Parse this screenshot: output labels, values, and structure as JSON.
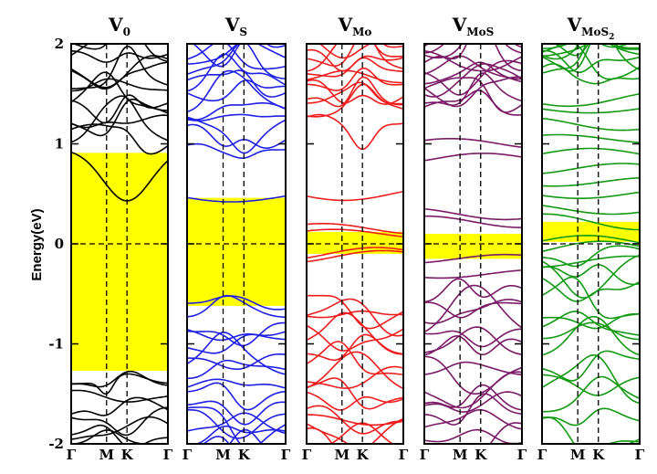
{
  "chart_data": {
    "type": "line",
    "chart_kind": "electronic band structure",
    "ylabel": "Energy(eV)",
    "ylim": [
      -2,
      2
    ],
    "yticks": [
      "2",
      "1",
      "0",
      "-1",
      "-2"
    ],
    "ytick_values": [
      2,
      1,
      0,
      -1,
      -2
    ],
    "k_path": [
      "Γ",
      "M",
      "K",
      "Γ"
    ],
    "k_positions": [
      0,
      0.577,
      0.91,
      1.577
    ],
    "fermi_level": 0,
    "grid": false,
    "legend": "none",
    "panels": [
      {
        "id": "v0",
        "title": "V",
        "title_sub": "0",
        "title_subsub": "",
        "line_color": "#000000",
        "shade_color": "#ffff00",
        "band_gap_ev": [
          -1.27,
          0.91
        ],
        "valence_band_max_ev": -1.27,
        "conduction_band_min_ev": 0.91,
        "defect_bands_ev": []
      },
      {
        "id": "vs",
        "title": "V",
        "title_sub": "S",
        "title_subsub": "",
        "line_color": "#1f1fe6",
        "shade_color": "#ffff00",
        "band_gap_ev": [
          -0.62,
          0.46
        ],
        "valence_band_max_ev": -0.62,
        "conduction_band_min_ev": 0.97,
        "defect_bands_ev": [
          0.47
        ]
      },
      {
        "id": "vmo",
        "title": "V",
        "title_sub": "Mo",
        "title_subsub": "",
        "line_color": "#ee1c1c",
        "shade_color": "#ffff00",
        "band_gap_ev": [
          -0.1,
          0.12
        ],
        "valence_band_max_ev": -0.62,
        "conduction_band_min_ev": 1.25,
        "defect_bands_ev": [
          0.5,
          0.15,
          0.1,
          -0.1,
          -0.13
        ]
      },
      {
        "id": "vmos",
        "title": "V",
        "title_sub": "MoS",
        "title_subsub": "",
        "line_color": "#7a1a66",
        "shade_color": "#ffff00",
        "band_gap_ev": [
          -0.15,
          0.1
        ],
        "valence_band_max_ev": -0.45,
        "conduction_band_min_ev": 1.35,
        "defect_bands_ev": [
          1.0,
          0.85,
          0.3,
          0.22,
          -0.15,
          -0.3
        ]
      },
      {
        "id": "vmos2",
        "title": "V",
        "title_sub": "MoS",
        "title_subsub": "2",
        "line_color": "#119911",
        "shade_color": "#ffff00",
        "band_gap_ev": [
          0.02,
          0.22
        ],
        "valence_band_max_ev": -0.05,
        "conduction_band_min_ev": 1.75,
        "defect_bands_ev": [
          1.45,
          1.35,
          1.2,
          1.05,
          0.9,
          0.75,
          0.62,
          0.5,
          0.35,
          0.22,
          0.02,
          -0.05,
          -0.18
        ]
      }
    ]
  }
}
